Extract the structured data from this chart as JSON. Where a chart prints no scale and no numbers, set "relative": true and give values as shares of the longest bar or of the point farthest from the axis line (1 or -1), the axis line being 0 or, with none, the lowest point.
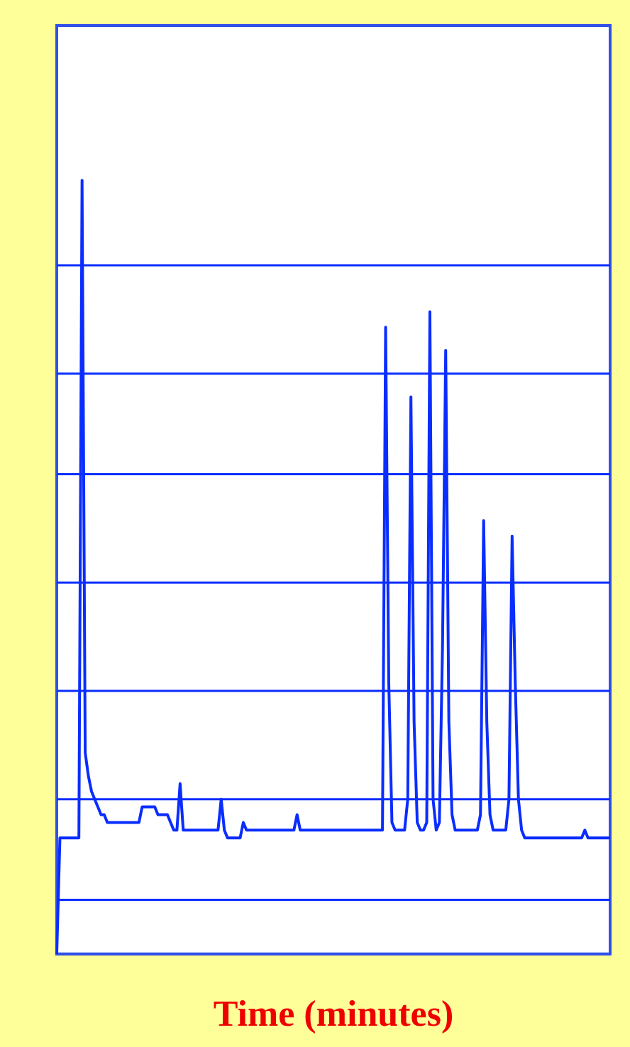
{
  "chart_data": {
    "type": "line",
    "xlabel": "Time (minutes)",
    "relative": true,
    "legend": false,
    "marker": "none",
    "line_style": "solid",
    "grid": false,
    "ref_lines": [
      {
        "axis": "y",
        "value": 0.07,
        "color": "#0a2dff"
      },
      {
        "axis": "y",
        "value": 0.2,
        "color": "#0a2dff"
      },
      {
        "axis": "y",
        "value": 0.34,
        "color": "#0a2dff"
      },
      {
        "axis": "y",
        "value": 0.48,
        "color": "#0a2dff"
      },
      {
        "axis": "y",
        "value": 0.62,
        "color": "#0a2dff"
      },
      {
        "axis": "y",
        "value": 0.75,
        "color": "#0a2dff"
      },
      {
        "axis": "y",
        "value": 0.89,
        "color": "#0a2dff"
      }
    ],
    "categories": [
      null,
      null,
      null,
      null,
      null,
      null,
      null,
      null,
      null,
      null,
      null,
      null,
      null,
      null,
      null,
      null,
      null,
      null,
      null,
      null,
      null,
      null,
      null,
      null,
      null,
      null,
      null,
      null,
      null,
      null,
      null,
      null,
      null,
      null,
      null,
      null,
      null,
      null,
      null,
      null,
      null,
      null,
      null,
      null,
      null,
      null,
      null,
      null,
      null,
      null,
      null,
      null,
      null,
      null,
      null,
      null,
      null,
      null,
      null,
      null,
      null,
      null,
      null,
      null,
      null,
      null,
      null,
      null,
      null,
      null,
      null,
      null,
      null,
      null,
      null,
      null,
      null,
      null,
      null,
      null,
      null,
      null,
      null,
      null,
      null,
      null,
      null,
      null,
      null,
      null,
      null,
      null,
      null,
      null,
      null,
      null,
      null,
      null,
      null,
      null,
      null,
      null,
      null,
      null,
      null,
      null,
      null,
      null,
      null,
      null,
      null,
      null,
      null,
      null,
      null,
      null,
      null,
      null,
      null,
      null,
      null,
      null,
      null,
      null,
      null,
      null,
      null,
      null,
      null,
      null,
      null,
      null,
      null,
      null,
      null,
      null,
      null,
      null,
      null,
      null,
      null,
      null,
      null,
      null,
      null,
      null,
      null,
      null,
      null,
      null,
      null,
      null,
      null,
      null,
      null,
      null,
      null,
      null,
      null,
      null,
      null,
      null,
      null,
      null,
      null,
      null,
      null,
      null,
      null,
      null,
      null,
      null,
      null,
      null,
      null,
      null
    ],
    "series": [
      {
        "color": "#0a2dff",
        "values": [
          0,
          0.15,
          0.15,
          0.15,
          0.15,
          0.15,
          0.15,
          0.15,
          1.0,
          0.26,
          0.23,
          0.21,
          0.2,
          0.19,
          0.18,
          0.18,
          0.17,
          0.17,
          0.17,
          0.17,
          0.17,
          0.17,
          0.17,
          0.17,
          0.17,
          0.17,
          0.17,
          0.19,
          0.19,
          0.19,
          0.19,
          0.19,
          0.18,
          0.18,
          0.18,
          0.18,
          0.17,
          0.16,
          0.16,
          0.22,
          0.16,
          0.16,
          0.16,
          0.16,
          0.16,
          0.16,
          0.16,
          0.16,
          0.16,
          0.16,
          0.16,
          0.16,
          0.2,
          0.16,
          0.15,
          0.15,
          0.15,
          0.15,
          0.15,
          0.17,
          0.16,
          0.16,
          0.16,
          0.16,
          0.16,
          0.16,
          0.16,
          0.16,
          0.16,
          0.16,
          0.16,
          0.16,
          0.16,
          0.16,
          0.16,
          0.16,
          0.18,
          0.16,
          0.16,
          0.16,
          0.16,
          0.16,
          0.16,
          0.16,
          0.16,
          0.16,
          0.16,
          0.16,
          0.16,
          0.16,
          0.16,
          0.16,
          0.16,
          0.16,
          0.16,
          0.16,
          0.16,
          0.16,
          0.16,
          0.16,
          0.16,
          0.16,
          0.16,
          0.16,
          0.81,
          0.35,
          0.17,
          0.16,
          0.16,
          0.16,
          0.16,
          0.2,
          0.72,
          0.3,
          0.17,
          0.16,
          0.16,
          0.17,
          0.83,
          0.2,
          0.16,
          0.17,
          0.4,
          0.78,
          0.3,
          0.18,
          0.16,
          0.16,
          0.16,
          0.16,
          0.16,
          0.16,
          0.16,
          0.16,
          0.18,
          0.56,
          0.3,
          0.18,
          0.16,
          0.16,
          0.16,
          0.16,
          0.16,
          0.2,
          0.54,
          0.35,
          0.2,
          0.16,
          0.15,
          0.15,
          0.15,
          0.15,
          0.15,
          0.15,
          0.15,
          0.15,
          0.15,
          0.15,
          0.15,
          0.15,
          0.15,
          0.15,
          0.15,
          0.15,
          0.15,
          0.15,
          0.15,
          0.16,
          0.15,
          0.15,
          0.15,
          0.15,
          0.15,
          0.15,
          0.15,
          0.15
        ]
      }
    ]
  }
}
